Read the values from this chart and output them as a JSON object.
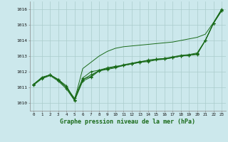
{
  "title": "Graphe pression niveau de la mer (hPa)",
  "bg_color": "#cce8ec",
  "grid_color": "#aacccc",
  "line_color": "#1a6b1a",
  "ylim": [
    1009.5,
    1016.5
  ],
  "xlim": [
    -0.5,
    23.5
  ],
  "yticks": [
    1010,
    1011,
    1012,
    1013,
    1014,
    1015,
    1016
  ],
  "xticks": [
    0,
    1,
    2,
    3,
    4,
    5,
    6,
    7,
    8,
    9,
    10,
    11,
    12,
    13,
    14,
    15,
    16,
    17,
    18,
    19,
    20,
    21,
    22,
    23
  ],
  "series_with_markers": [
    [
      1011.2,
      1011.6,
      1011.8,
      1011.5,
      1011.0,
      1010.2,
      1011.5,
      1011.8,
      1012.05,
      1012.2,
      1012.3,
      1012.4,
      1012.5,
      1012.6,
      1012.75,
      1012.8,
      1012.85,
      1012.9,
      1013.0,
      1013.05,
      1013.1,
      1014.0,
      1015.1,
      1015.9
    ],
    [
      1011.2,
      1011.6,
      1011.8,
      1011.45,
      1011.0,
      1010.3,
      1011.6,
      1012.0,
      1012.1,
      1012.25,
      1012.35,
      1012.4,
      1012.5,
      1012.65,
      1012.7,
      1012.8,
      1012.8,
      1012.9,
      1013.0,
      1013.05,
      1013.15,
      1014.0,
      1015.1,
      1016.0
    ],
    [
      1011.2,
      1011.65,
      1011.8,
      1011.5,
      1011.1,
      1010.2,
      1011.5,
      1011.7,
      1012.1,
      1012.2,
      1012.3,
      1012.45,
      1012.55,
      1012.65,
      1012.7,
      1012.8,
      1012.85,
      1012.95,
      1013.05,
      1013.1,
      1013.2,
      1014.0,
      1015.1,
      1015.95
    ],
    [
      1011.15,
      1011.55,
      1011.75,
      1011.4,
      1010.9,
      1010.15,
      1011.4,
      1011.65,
      1012.05,
      1012.15,
      1012.25,
      1012.4,
      1012.5,
      1012.6,
      1012.65,
      1012.75,
      1012.8,
      1012.9,
      1013.0,
      1013.05,
      1013.15,
      1014.0,
      1015.1,
      1015.9
    ]
  ],
  "series_no_markers": [
    [
      1011.2,
      1011.6,
      1011.8,
      1011.5,
      1011.0,
      1010.2,
      1012.2,
      1012.6,
      1013.0,
      1013.3,
      1013.5,
      1013.6,
      1013.65,
      1013.7,
      1013.75,
      1013.8,
      1013.85,
      1013.9,
      1014.0,
      1014.1,
      1014.2,
      1014.4,
      1015.15,
      1016.0
    ]
  ]
}
